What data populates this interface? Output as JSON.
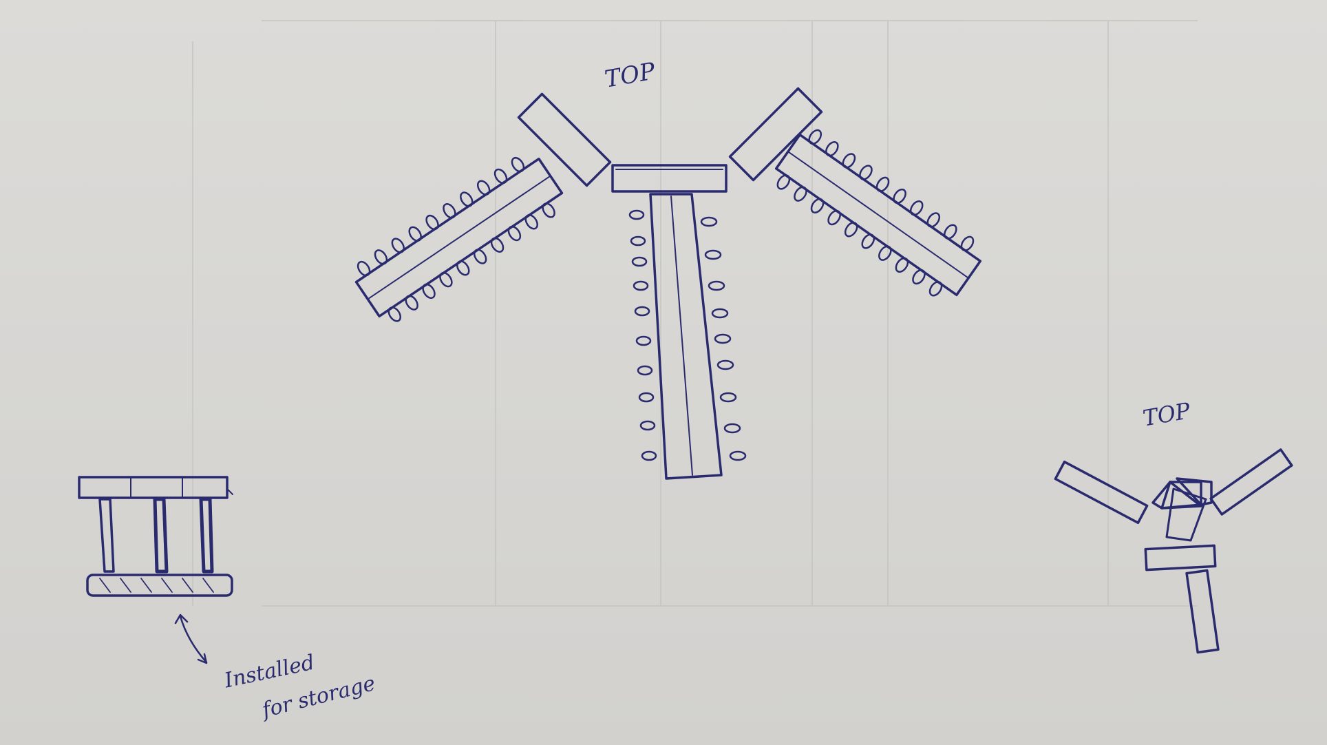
{
  "labels": {
    "top_main": "TOP",
    "top_small": "TOP",
    "caption_line1": "Installed",
    "caption_line2": "for storage"
  },
  "colors": {
    "ink": "#2a2a6e",
    "paper": "#d8d7d4",
    "bleed_through": "#c9c8c5"
  }
}
